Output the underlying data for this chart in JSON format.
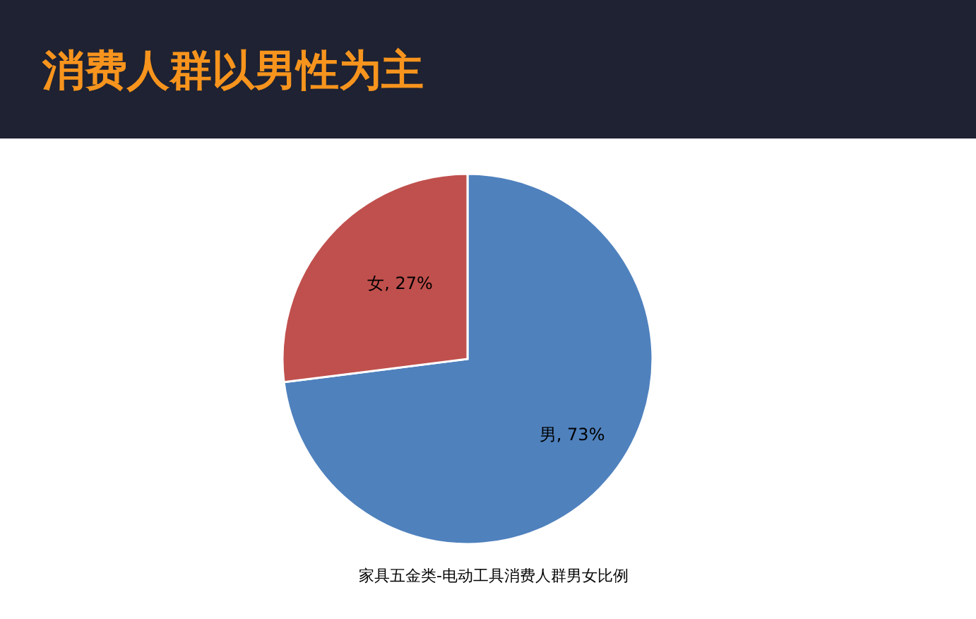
{
  "chart_data": {
    "type": "pie",
    "title": "消费人群以男性为主",
    "categories": [
      "男",
      "女"
    ],
    "values": [
      73,
      27
    ],
    "colors": [
      "#4f81bd",
      "#c0504d"
    ],
    "value_labels": [
      ", 73%",
      ", 27%"
    ],
    "annotations": [
      "家具五金类-电动工具消费人群男女比例"
    ]
  }
}
